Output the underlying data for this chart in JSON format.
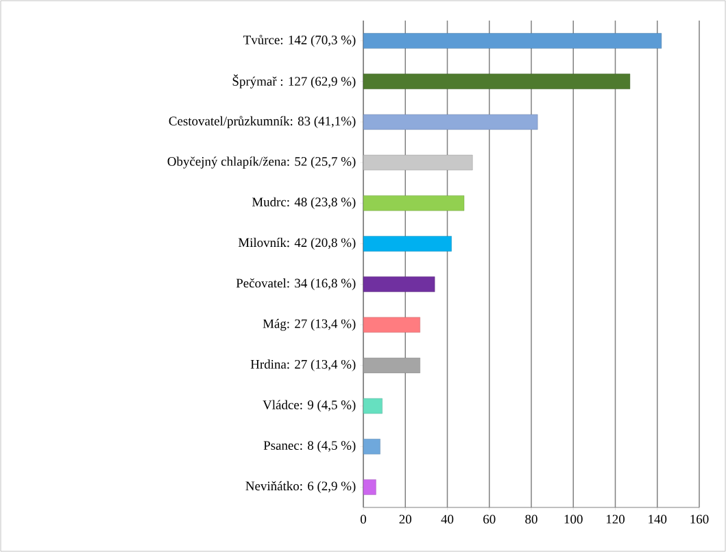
{
  "chart_data": {
    "type": "bar",
    "orientation": "horizontal",
    "categories": [
      "Tvůrce: 142 (70,3 %)",
      "Šprýmař : 127 (62,9 %)",
      "Cestovatel/průzkumník: 83 (41,1%)",
      "Obyčejný chlapík/žena: 52 (25,7 %)",
      "Mudrc: 48 (23,8 %)",
      "Milovník: 42 (20,8 %)",
      "Pečovatel: 34 (16,8 %)",
      "Mág: 27 (13,4 %)",
      "Hrdina: 27 (13,4 %)",
      "Vládce: 9 (4,5 %)",
      "Psanec: 8 (4,5 %)",
      "Neviňátko: 6 (2,9 %)"
    ],
    "values": [
      142,
      127,
      83,
      52,
      48,
      42,
      34,
      27,
      27,
      9,
      8,
      6
    ],
    "colors": [
      "#5b9bd5",
      "#4e7a2e",
      "#8eaadb",
      "#c8c8c8",
      "#92d050",
      "#00b0f0",
      "#7030a0",
      "#ff7c80",
      "#a5a5a5",
      "#66e0c0",
      "#6fa8dc",
      "#cc66ee"
    ],
    "xlim": [
      0,
      160
    ],
    "xticks": [
      0,
      20,
      40,
      60,
      80,
      100,
      120,
      140,
      160
    ],
    "grid": "x",
    "legend": false
  }
}
